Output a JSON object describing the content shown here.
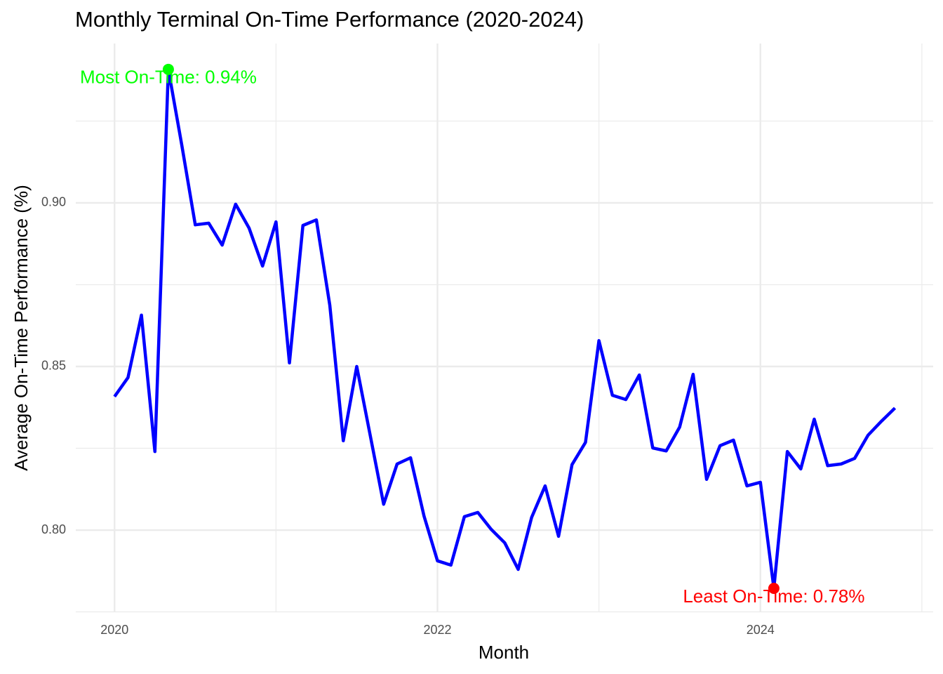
{
  "chart_data": {
    "type": "line",
    "title": "Monthly Terminal On-Time Performance (2020-2024)",
    "x_label": "Month",
    "y_label": "Average On-Time Performance (%)",
    "x": [
      2020,
      2020.0833,
      2020.1667,
      2020.25,
      2020.3333,
      2020.4167,
      2020.5,
      2020.5833,
      2020.6667,
      2020.75,
      2020.8333,
      2020.9167,
      2021,
      2021.0833,
      2021.1667,
      2021.25,
      2021.3333,
      2021.4167,
      2021.5,
      2021.5833,
      2021.6667,
      2021.75,
      2021.8333,
      2021.9167,
      2022,
      2022.0833,
      2022.1667,
      2022.25,
      2022.3333,
      2022.4167,
      2022.5,
      2022.5833,
      2022.6667,
      2022.75,
      2022.8333,
      2022.9167,
      2023,
      2023.0833,
      2023.1667,
      2023.25,
      2023.3333,
      2023.4167,
      2023.5,
      2023.5833,
      2023.6667,
      2023.75,
      2023.8333,
      2023.9167,
      2024,
      2024.0833,
      2024.1667,
      2024.25,
      2024.3333,
      2024.4167,
      2024.5,
      2024.5833,
      2024.6667,
      2024.75,
      2024.8333
    ],
    "series": [
      {
        "color": "#0000ff",
        "values": [
          0.8408,
          0.8466,
          0.8657,
          0.824,
          0.9408,
          0.9176,
          0.8933,
          0.8938,
          0.8871,
          0.8996,
          0.8923,
          0.8807,
          0.8942,
          0.8511,
          0.8931,
          0.8948,
          0.8687,
          0.8273,
          0.85,
          0.829,
          0.8079,
          0.8202,
          0.8221,
          0.8043,
          0.7906,
          0.7893,
          0.8041,
          0.8054,
          0.8002,
          0.7961,
          0.788,
          0.8039,
          0.8135,
          0.7981,
          0.82,
          0.8268,
          0.8579,
          0.8412,
          0.8399,
          0.8474,
          0.8251,
          0.8242,
          0.8315,
          0.8476,
          0.8155,
          0.8258,
          0.8275,
          0.8135,
          0.8146,
          0.7822,
          0.824,
          0.8187,
          0.8339,
          0.8197,
          0.8202,
          0.8219,
          0.829,
          0.8333,
          0.8373
        ]
      }
    ],
    "annotations": [
      {
        "text": "Most On-Time: 0.94%",
        "x": 2020.3333,
        "y": 0.9408,
        "color": "#00ff00"
      },
      {
        "text": "Least On-Time: 0.78%",
        "x": 2024.0833,
        "y": 0.7822,
        "color": "#ff0000"
      }
    ],
    "xlim": [
      2019.76,
      2025.07
    ],
    "xticks": [
      2020,
      2022,
      2024
    ],
    "ylim": [
      0.7749,
      0.9487
    ],
    "yticks": [
      {
        "value": 0.8,
        "label": "0.80"
      },
      {
        "value": 0.85,
        "label": "0.85"
      },
      {
        "value": 0.9,
        "label": "0.90"
      }
    ],
    "grid": true
  }
}
